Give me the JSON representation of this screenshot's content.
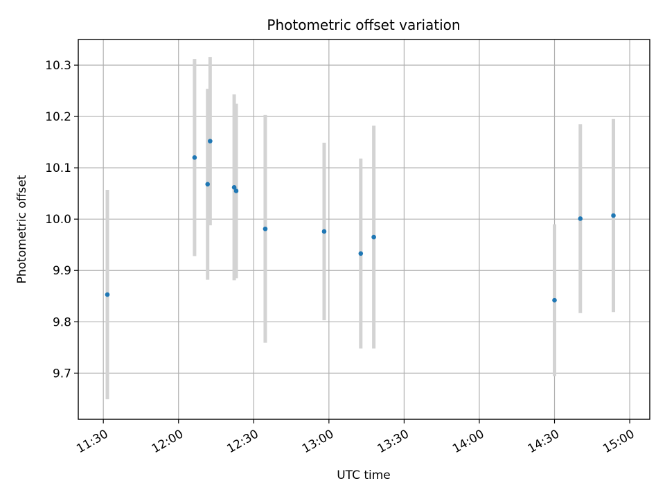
{
  "chart_data": {
    "type": "scatter",
    "title": "Photometric offset variation",
    "xlabel": "UTC time",
    "ylabel": "Photometric offset",
    "x_unit": "minutes since 00:00 UTC",
    "xlim": [
      680,
      908
    ],
    "ylim": [
      9.61,
      10.35
    ],
    "grid": true,
    "x_ticks": [
      {
        "value": 690,
        "label": "11:30"
      },
      {
        "value": 720,
        "label": "12:00"
      },
      {
        "value": 750,
        "label": "12:30"
      },
      {
        "value": 780,
        "label": "13:00"
      },
      {
        "value": 810,
        "label": "13:30"
      },
      {
        "value": 840,
        "label": "14:00"
      },
      {
        "value": 870,
        "label": "14:30"
      },
      {
        "value": 900,
        "label": "15:00"
      }
    ],
    "y_ticks": [
      {
        "value": 9.7,
        "label": "9.7"
      },
      {
        "value": 9.8,
        "label": "9.8"
      },
      {
        "value": 9.9,
        "label": "9.9"
      },
      {
        "value": 10.0,
        "label": "10.0"
      },
      {
        "value": 10.1,
        "label": "10.1"
      },
      {
        "value": 10.2,
        "label": "10.2"
      },
      {
        "value": 10.3,
        "label": "10.3"
      }
    ],
    "marker_color": "#1f77b4",
    "errorbar_color": "#d3d3d3",
    "points": [
      {
        "x": 691.6,
        "y": 9.853,
        "err": 0.204
      },
      {
        "x": 726.4,
        "y": 10.12,
        "err": 0.192
      },
      {
        "x": 731.6,
        "y": 10.068,
        "err": 0.186
      },
      {
        "x": 732.6,
        "y": 10.152,
        "err": 0.164
      },
      {
        "x": 742.2,
        "y": 10.062,
        "err": 0.181
      },
      {
        "x": 743.0,
        "y": 10.055,
        "err": 0.17
      },
      {
        "x": 754.6,
        "y": 9.981,
        "err": 0.222
      },
      {
        "x": 778.1,
        "y": 9.976,
        "err": 0.173
      },
      {
        "x": 792.7,
        "y": 9.933,
        "err": 0.185
      },
      {
        "x": 797.9,
        "y": 9.965,
        "err": 0.217
      },
      {
        "x": 870.0,
        "y": 9.842,
        "err": 0.148
      },
      {
        "x": 880.3,
        "y": 10.001,
        "err": 0.184
      },
      {
        "x": 893.5,
        "y": 10.007,
        "err": 0.188
      }
    ]
  }
}
